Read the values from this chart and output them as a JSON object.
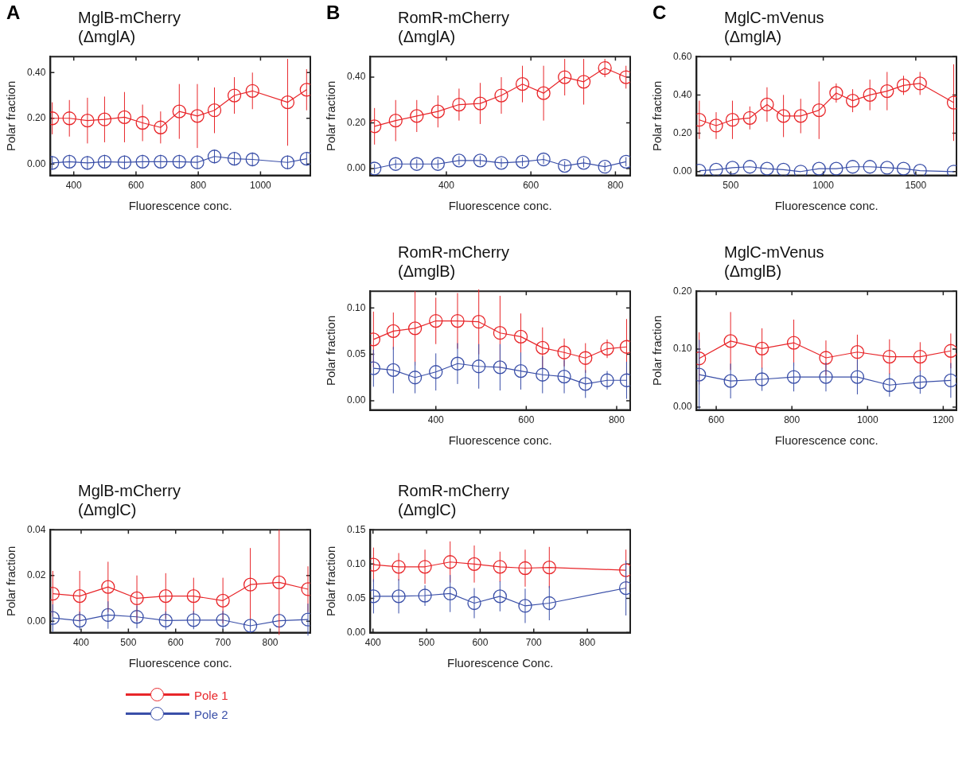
{
  "chart_data": [
    {
      "type": "line",
      "title": "MglB-mCherry",
      "subtitle": "(ΔmglA)",
      "annotations": [
        "A"
      ],
      "xlabel": "Fluorescence conc.",
      "ylabel": "Polar fraction",
      "xlim": [
        325,
        1160
      ],
      "xticks": [
        400,
        600,
        800,
        1000
      ],
      "ylim": [
        -0.05,
        0.47
      ],
      "yticks": [
        {
          "value": 0,
          "label": "0.00"
        },
        {
          "value": 0.2,
          "label": "0.20"
        },
        {
          "value": 0.4,
          "label": "0.40"
        }
      ],
      "marker": "circle",
      "grid": false,
      "legend": false,
      "series": [
        {
          "color": "#e8262a",
          "x": [
            331,
            386,
            444,
            499,
            563,
            621,
            679,
            739,
            797,
            852,
            916,
            974,
            1087,
            1148
          ],
          "values": [
            0.2,
            0.2,
            0.19,
            0.195,
            0.205,
            0.18,
            0.16,
            0.23,
            0.21,
            0.235,
            0.3,
            0.32,
            0.27,
            0.325
          ],
          "errors": [
            0.07,
            0.08,
            0.1,
            0.1,
            0.11,
            0.08,
            0.07,
            0.12,
            0.14,
            0.1,
            0.08,
            0.08,
            0.19,
            0.09
          ]
        },
        {
          "color": "#3a4fa8",
          "x": [
            331,
            386,
            444,
            499,
            563,
            621,
            679,
            739,
            797,
            852,
            916,
            974,
            1087,
            1148
          ],
          "values": [
            0.005,
            0.01,
            0.005,
            0.01,
            0.007,
            0.01,
            0.01,
            0.01,
            0.007,
            0.033,
            0.023,
            0.02,
            0.007,
            0.023
          ],
          "errors": [
            0.03,
            0.03,
            0.03,
            0.03,
            0.03,
            0.03,
            0.03,
            0.03,
            0.03,
            0.03,
            0.03,
            0.03,
            0.03,
            0.03
          ]
        }
      ]
    },
    {
      "type": "line",
      "title": "RomR-mCherry",
      "subtitle": "(ΔmglA)",
      "annotations": [
        "B"
      ],
      "xlabel": "Fluorescence conc.",
      "ylabel": "Polar fraction",
      "xlim": [
        220,
        835
      ],
      "xticks": [
        400,
        600,
        800
      ],
      "ylim": [
        -0.03,
        0.49
      ],
      "yticks": [
        {
          "value": 0,
          "label": "0.00"
        },
        {
          "value": 0.2,
          "label": "0.20"
        },
        {
          "value": 0.4,
          "label": "0.40"
        }
      ],
      "marker": "circle",
      "grid": false,
      "legend": false,
      "series": [
        {
          "color": "#e8262a",
          "x": [
            230,
            280,
            330,
            380,
            430,
            480,
            530,
            580,
            630,
            680,
            725,
            775,
            825
          ],
          "values": [
            0.185,
            0.21,
            0.23,
            0.25,
            0.28,
            0.285,
            0.32,
            0.37,
            0.33,
            0.4,
            0.38,
            0.44,
            0.4
          ],
          "errors": [
            0.08,
            0.09,
            0.07,
            0.07,
            0.07,
            0.09,
            0.08,
            0.08,
            0.12,
            0.08,
            0.1,
            0.04,
            0.05
          ]
        },
        {
          "color": "#3a4fa8",
          "x": [
            230,
            280,
            330,
            380,
            430,
            480,
            530,
            580,
            630,
            680,
            725,
            775,
            825
          ],
          "values": [
            0,
            0.02,
            0.02,
            0.02,
            0.035,
            0.035,
            0.025,
            0.03,
            0.04,
            0.012,
            0.025,
            0.008,
            0.03
          ],
          "errors": [
            0.02,
            0.02,
            0.02,
            0.02,
            0.02,
            0.02,
            0.02,
            0.02,
            0.02,
            0.02,
            0.02,
            0.02,
            0.02
          ]
        }
      ]
    },
    {
      "type": "line",
      "title": "MglC-mVenus",
      "subtitle": "(ΔmglA)",
      "annotations": [
        "C"
      ],
      "xlabel": "Fluorescence conc.",
      "ylabel": "Polar fraction",
      "xlim": [
        315,
        1720
      ],
      "xticks": [
        500,
        1000,
        1500
      ],
      "ylim": [
        -0.02,
        0.6
      ],
      "yticks": [
        {
          "value": 0,
          "label": "0.00"
        },
        {
          "value": 0.2,
          "label": "0.20"
        },
        {
          "value": 0.4,
          "label": "0.40"
        },
        {
          "value": 0.6,
          "label": "0.60"
        }
      ],
      "marker": "circle",
      "grid": false,
      "legend": false,
      "series": [
        {
          "color": "#e8262a",
          "x": [
            330,
            421,
            509,
            603,
            696,
            785,
            878,
            977,
            1070,
            1159,
            1252,
            1345,
            1434,
            1523,
            1705
          ],
          "values": [
            0.27,
            0.24,
            0.27,
            0.28,
            0.35,
            0.29,
            0.29,
            0.32,
            0.41,
            0.37,
            0.4,
            0.42,
            0.45,
            0.46,
            0.36
          ],
          "errors": [
            0.1,
            0.07,
            0.1,
            0.06,
            0.09,
            0.11,
            0.09,
            0.15,
            0.05,
            0.06,
            0.08,
            0.1,
            0.05,
            0.06,
            0.2
          ]
        },
        {
          "color": "#3a4fa8",
          "x": [
            330,
            421,
            509,
            603,
            696,
            785,
            878,
            977,
            1070,
            1159,
            1252,
            1345,
            1434,
            1523,
            1705
          ],
          "values": [
            0.005,
            0.01,
            0.02,
            0.025,
            0.015,
            0.01,
            0,
            0.015,
            0.015,
            0.025,
            0.025,
            0.02,
            0.015,
            0.005,
            0
          ]
        }
      ]
    },
    {
      "type": "line",
      "title": "RomR-mCherry",
      "subtitle": "(ΔmglB)",
      "xlabel": "Fluorescence conc.",
      "ylabel": "Polar fraction",
      "xlim": [
        255,
        830
      ],
      "xticks": [
        400,
        600,
        800
      ],
      "ylim": [
        -0.01,
        0.118
      ],
      "yticks": [
        {
          "value": 0,
          "label": "0.00"
        },
        {
          "value": 0.05,
          "label": "0.05"
        },
        {
          "value": 0.1,
          "label": "0.10"
        }
      ],
      "marker": "circle",
      "grid": false,
      "legend": false,
      "series": [
        {
          "color": "#e8262a",
          "x": [
            262,
            306,
            354,
            400,
            448,
            495,
            542,
            588,
            636,
            684,
            731,
            779,
            822
          ],
          "values": [
            0.066,
            0.075,
            0.078,
            0.086,
            0.086,
            0.085,
            0.073,
            0.069,
            0.057,
            0.052,
            0.046,
            0.056,
            0.058
          ],
          "errors": [
            0.03,
            0.02,
            0.04,
            0.025,
            0.03,
            0.035,
            0.04,
            0.025,
            0.022,
            0.015,
            0.016,
            0.01,
            0.03
          ]
        },
        {
          "color": "#3a4fa8",
          "x": [
            262,
            306,
            354,
            400,
            448,
            495,
            542,
            588,
            636,
            684,
            731,
            779,
            822
          ],
          "values": [
            0.035,
            0.033,
            0.025,
            0.031,
            0.04,
            0.037,
            0.036,
            0.032,
            0.028,
            0.026,
            0.018,
            0.022,
            0.022
          ],
          "errors": [
            0.02,
            0.025,
            0.017,
            0.02,
            0.022,
            0.024,
            0.025,
            0.02,
            0.02,
            0.018,
            0.015,
            0.01,
            0.02
          ]
        }
      ]
    },
    {
      "type": "line",
      "title": "MglC-mVenus",
      "subtitle": "(ΔmglB)",
      "xlabel": "Fluorescence conc.",
      "ylabel": "Polar fraction",
      "xlim": [
        548,
        1235
      ],
      "xticks": [
        600,
        800,
        1000,
        1200
      ],
      "ylim": [
        -0.005,
        0.2
      ],
      "yticks": [
        {
          "value": 0,
          "label": "0.00"
        },
        {
          "value": 0.1,
          "label": "0.10"
        },
        {
          "value": 0.2,
          "label": "0.20"
        }
      ],
      "marker": "circle",
      "grid": false,
      "legend": false,
      "series": [
        {
          "color": "#e8262a",
          "x": [
            555,
            638,
            721,
            805,
            890,
            973,
            1058,
            1139,
            1220
          ],
          "values": [
            0.084,
            0.114,
            0.101,
            0.111,
            0.085,
            0.095,
            0.087,
            0.087,
            0.097
          ],
          "errors": [
            0.045,
            0.05,
            0.035,
            0.04,
            0.03,
            0.03,
            0.03,
            0.025,
            0.03
          ]
        },
        {
          "color": "#3a4fa8",
          "x": [
            555,
            638,
            721,
            805,
            890,
            973,
            1058,
            1139,
            1220
          ],
          "values": [
            0.056,
            0.045,
            0.048,
            0.052,
            0.052,
            0.052,
            0.038,
            0.043,
            0.046
          ],
          "errors": [
            0.06,
            0.03,
            0.02,
            0.025,
            0.025,
            0.03,
            0.02,
            0.02,
            0.03
          ]
        }
      ]
    },
    {
      "type": "line",
      "title": "MglB-mCherry",
      "subtitle": "(ΔmglC)",
      "xlabel": "Fluorescence conc.",
      "ylabel": "Polar fraction",
      "xlim": [
        335,
        885
      ],
      "xticks": [
        400,
        500,
        600,
        700,
        800
      ],
      "ylim": [
        -0.005,
        0.04
      ],
      "yticks": [
        {
          "value": 0,
          "label": "0.00"
        },
        {
          "value": 0.02,
          "label": "0.02"
        },
        {
          "value": 0.04,
          "label": "0.04"
        }
      ],
      "marker": "circle",
      "grid": false,
      "legend": "bottom",
      "series": [
        {
          "name": "Pole 1",
          "color": "#e8262a",
          "x": [
            340,
            397,
            457,
            518,
            579,
            638,
            700,
            758,
            819,
            880
          ],
          "values": [
            0.012,
            0.011,
            0.015,
            0.01,
            0.011,
            0.011,
            0.009,
            0.016,
            0.017,
            0.014
          ],
          "errors": [
            0.01,
            0.011,
            0.011,
            0.01,
            0.01,
            0.008,
            0.01,
            0.016,
            0.023,
            0.01
          ]
        },
        {
          "name": "Pole 2",
          "color": "#3a4fa8",
          "x": [
            340,
            397,
            457,
            518,
            579,
            638,
            700,
            758,
            819,
            880
          ],
          "values": [
            0.0014,
            0.0002,
            0.0027,
            0.0019,
            0.0003,
            0.0005,
            0.0005,
            -0.002,
            0.0002,
            0.0007
          ],
          "errors": [
            0.006,
            0.004,
            0.006,
            0.005,
            0.004,
            0.004,
            0.004,
            0.003,
            null,
            0.007
          ]
        }
      ]
    },
    {
      "type": "line",
      "title": "RomR-mCherry",
      "subtitle": "(ΔmglC)",
      "xlabel": "Fluorescence Conc.",
      "ylabel": "Polar fraction",
      "xlim": [
        395,
        880
      ],
      "xticks": [
        400,
        500,
        600,
        700,
        800
      ],
      "ylim": [
        0,
        0.15
      ],
      "yticks": [
        {
          "value": 0,
          "label": "0.00"
        },
        {
          "value": 0.05,
          "label": "0.05"
        },
        {
          "value": 0.1,
          "label": "0.10"
        },
        {
          "value": 0.15,
          "label": "0.15"
        }
      ],
      "marker": "circle",
      "grid": false,
      "legend": false,
      "series": [
        {
          "color": "#e8262a",
          "x": [
            401,
            448,
            497,
            544,
            589,
            637,
            684,
            729,
            872
          ],
          "values": [
            0.099,
            0.096,
            0.096,
            0.103,
            0.1,
            0.096,
            0.094,
            0.095,
            0.091
          ],
          "errors": [
            0.025,
            0.02,
            0.025,
            0.03,
            0.027,
            0.022,
            0.027,
            0.03,
            0.03
          ]
        },
        {
          "color": "#3a4fa8",
          "x": [
            401,
            448,
            497,
            544,
            589,
            637,
            684,
            729,
            872
          ],
          "values": [
            0.053,
            0.053,
            0.054,
            0.057,
            0.043,
            0.053,
            0.039,
            0.043,
            0.065
          ],
          "errors": [
            0.025,
            0.025,
            0.015,
            0.027,
            0.022,
            0.022,
            0.025,
            0.025,
            0.04
          ]
        }
      ]
    }
  ]
}
